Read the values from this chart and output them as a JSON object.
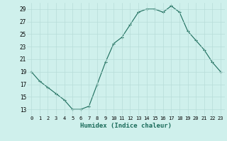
{
  "x": [
    0,
    1,
    2,
    3,
    4,
    5,
    6,
    7,
    8,
    9,
    10,
    11,
    12,
    13,
    14,
    15,
    16,
    17,
    18,
    19,
    20,
    21,
    22,
    23
  ],
  "y": [
    19.0,
    17.5,
    16.5,
    15.5,
    14.5,
    13.0,
    13.0,
    13.5,
    17.0,
    20.5,
    23.5,
    24.5,
    26.5,
    28.5,
    29.0,
    29.0,
    28.5,
    29.5,
    28.5,
    25.5,
    24.0,
    22.5,
    20.5,
    19.0
  ],
  "xlabel": "Humidex (Indice chaleur)",
  "ylim": [
    12,
    30
  ],
  "xlim": [
    -0.5,
    23.5
  ],
  "yticks": [
    13,
    15,
    17,
    19,
    21,
    23,
    25,
    27,
    29
  ],
  "xticks": [
    0,
    1,
    2,
    3,
    4,
    5,
    6,
    7,
    8,
    9,
    10,
    11,
    12,
    13,
    14,
    15,
    16,
    17,
    18,
    19,
    20,
    21,
    22,
    23
  ],
  "xtick_labels": [
    "0",
    "1",
    "2",
    "3",
    "4",
    "5",
    "6",
    "7",
    "8",
    "9",
    "10",
    "11",
    "12",
    "13",
    "14",
    "15",
    "16",
    "17",
    "18",
    "19",
    "20",
    "21",
    "22",
    "23"
  ],
  "line_color": "#1a6b5a",
  "marker": "+",
  "bg_color": "#cff0ec",
  "grid_color": "#b8dcd8",
  "xlabel_color": "#1a6b5a"
}
